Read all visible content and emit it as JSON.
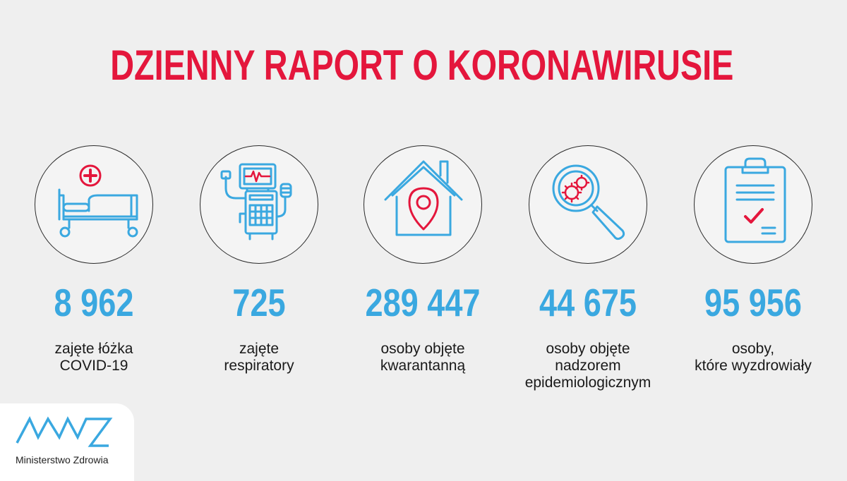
{
  "header": {
    "title": "DZIENNY RAPORT O KORONAWIRUSIE"
  },
  "colors": {
    "title": "#e4163c",
    "value": "#3aa8e0",
    "icon_blue": "#3aa8e0",
    "icon_red": "#e4163c"
  },
  "stats": [
    {
      "icon": "hospital-bed-icon",
      "value": "8 962",
      "label_lines": [
        "zajęte łóżka",
        "COVID-19"
      ]
    },
    {
      "icon": "ventilator-icon",
      "value": "725",
      "label_lines": [
        "zajęte",
        "respiratory"
      ]
    },
    {
      "icon": "house-location-icon",
      "value": "289 447",
      "label_lines": [
        "osoby objęte",
        "kwarantanną"
      ]
    },
    {
      "icon": "magnifier-virus-icon",
      "value": "44 675",
      "label_lines": [
        "osoby objęte",
        "nadzorem",
        "epidemiologicznym"
      ]
    },
    {
      "icon": "clipboard-check-icon",
      "value": "95 956",
      "label_lines": [
        "osoby,",
        "które wyzdrowiały"
      ]
    }
  ],
  "footer": {
    "logo_text": "Ministerstwo Zdrowia",
    "logo_icon": "ministry-logo-icon"
  }
}
